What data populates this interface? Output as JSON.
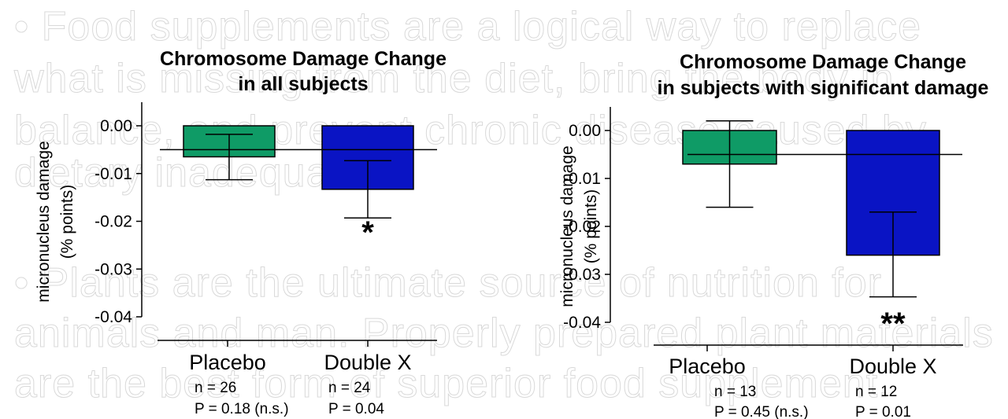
{
  "background_text": [
    "• Food supplements are a logical way to replace",
    "what is missing from the diet, bring the body in",
    "balance, and prevent chronic disease caused by",
    "dietary inadequacies.",
    "• Plants are the ultimate source of nutrition for",
    "animals and man. Properly prepared plant materials",
    "are the best form of superior food supplement."
  ],
  "colors": {
    "placebo": "#0f9b66",
    "double_x": "#0a14c4"
  },
  "chart_data": [
    {
      "type": "bar",
      "title_lines": [
        "Chromosome Damage Change",
        "in all subjects"
      ],
      "ylabel_lines": [
        "micronucleus damage",
        "(% points)"
      ],
      "ylim": [
        -0.04,
        0
      ],
      "yticks": [
        0,
        -0.01,
        -0.02,
        -0.03,
        -0.04
      ],
      "ytick_labels": [
        "0.00",
        "-0.01",
        "-0.02",
        "-0.03",
        "-0.04"
      ],
      "reference_line": -0.005,
      "categories": [
        "Placebo",
        "Double X"
      ],
      "values": [
        -0.0065,
        -0.0133
      ],
      "error_upper": [
        -0.0018,
        -0.0073
      ],
      "error_lower": [
        -0.0113,
        -0.0193
      ],
      "significance": [
        "",
        "*"
      ],
      "notes": [
        [
          "n = 26",
          "P = 0.18 (n.s.)"
        ],
        [
          "n = 24",
          "P = 0.04"
        ]
      ]
    },
    {
      "type": "bar",
      "title_lines": [
        "Chromosome Damage Change",
        "in subjects with significant damage"
      ],
      "ylabel_lines": [
        "micronucleus damage",
        "(% points)"
      ],
      "ylim": [
        -0.04,
        0
      ],
      "yticks": [
        0,
        -0.01,
        -0.02,
        -0.03,
        -0.04
      ],
      "ytick_labels": [
        "0.00",
        "-0.01",
        "-0.02",
        "-0.03",
        "-0.04"
      ],
      "reference_line": -0.005,
      "categories": [
        "Placebo",
        "Double X"
      ],
      "values": [
        -0.007,
        -0.026
      ],
      "error_upper": [
        0.002,
        -0.017
      ],
      "error_lower": [
        -0.016,
        -0.0347
      ],
      "significance": [
        "",
        "**"
      ],
      "notes": [
        [
          "n = 13",
          "P = 0.45 (n.s.)"
        ],
        [
          "n = 12",
          "P = 0.01"
        ]
      ]
    }
  ]
}
